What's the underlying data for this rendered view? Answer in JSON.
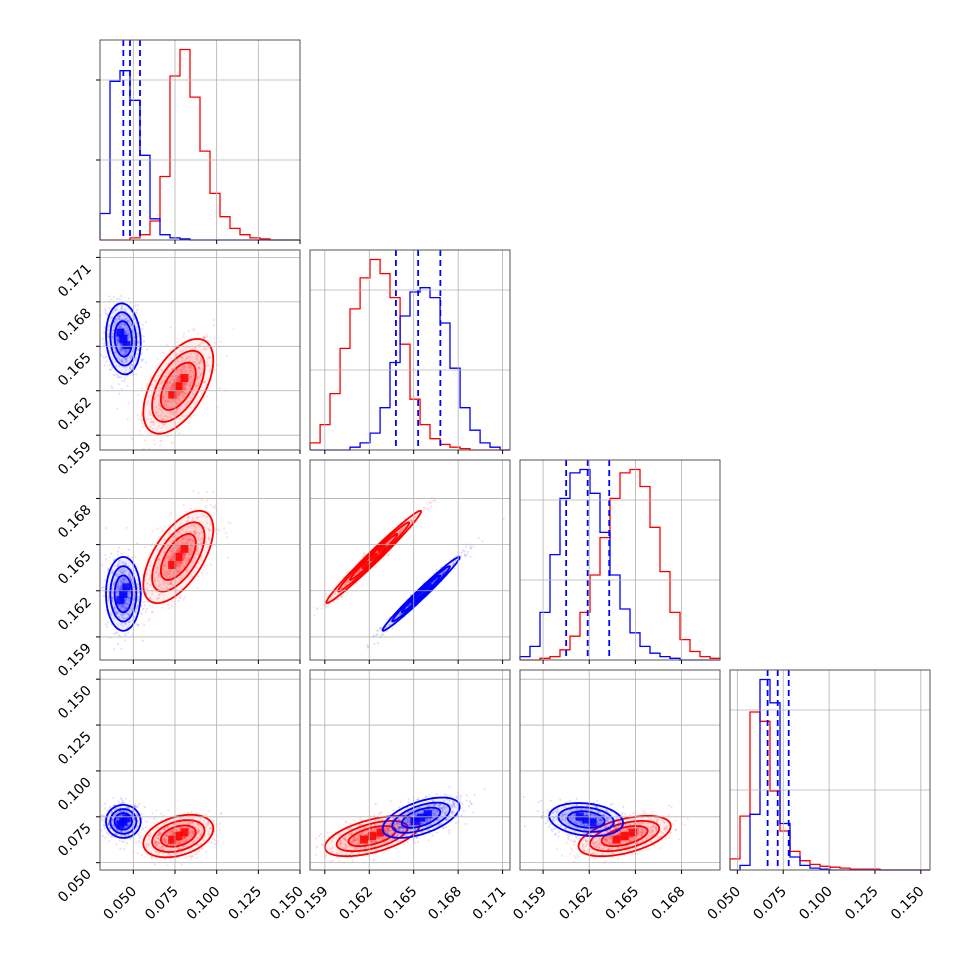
{
  "chart_data": {
    "type": "corner",
    "grid": true,
    "series": [
      {
        "name": "",
        "color": "#ff0000"
      },
      {
        "name": "",
        "color": "#0000ff"
      }
    ],
    "parameters": [
      {
        "range": [
          0.03,
          0.15
        ]
      },
      {
        "range": [
          0.158,
          0.1715
        ]
      },
      {
        "range": [
          0.1575,
          0.1705
        ]
      },
      {
        "range": [
          0.046,
          0.155
        ]
      }
    ],
    "tick_labels": {
      "col0_x": [
        "0.050",
        "0.075",
        "0.100",
        "0.125",
        "0.150"
      ],
      "col1_x": [
        "0.159",
        "0.162",
        "0.165",
        "0.168",
        "0.171"
      ],
      "col2_x": [
        "0.159",
        "0.162",
        "0.165",
        "0.168"
      ],
      "col3_x": [
        "0.050",
        "0.075",
        "0.100",
        "0.125",
        "0.150"
      ],
      "row1_y": [
        "0.159",
        "0.162",
        "0.165",
        "0.168",
        "0.171"
      ],
      "row2_y": [
        "0.159",
        "0.162",
        "0.165",
        "0.168"
      ],
      "row3_y": [
        "0.050",
        "0.075",
        "0.100",
        "0.125",
        "0.150"
      ]
    },
    "quantiles_blue": [
      [
        0.044,
        0.048,
        0.054
      ],
      [
        0.1638,
        0.1653,
        0.1668
      ],
      [
        0.1605,
        0.1619,
        0.1633
      ],
      [
        0.0665,
        0.072,
        0.078
      ]
    ],
    "histograms": {
      "p0": {
        "edges": [
          0.03,
          0.036,
          0.042,
          0.048,
          0.054,
          0.06,
          0.066,
          0.072,
          0.078,
          0.084,
          0.09,
          0.096,
          0.102,
          0.108,
          0.114,
          0.12,
          0.126,
          0.132,
          0.138,
          0.144,
          0.15
        ],
        "red": [
          0,
          0,
          0,
          2,
          5,
          18,
          60,
          155,
          180,
          135,
          84,
          44,
          22,
          11,
          5,
          2,
          1,
          0,
          0,
          0
        ],
        "blue": [
          25,
          150,
          160,
          132,
          80,
          20,
          5,
          2,
          1,
          0,
          0,
          0,
          0,
          0,
          0,
          0,
          0,
          0,
          0,
          0
        ]
      },
      "p1": {
        "edges": [
          0.158,
          0.15868,
          0.15935,
          0.16003,
          0.1607,
          0.16138,
          0.16205,
          0.16273,
          0.1634,
          0.16408,
          0.16475,
          0.16543,
          0.1661,
          0.16678,
          0.16745,
          0.16813,
          0.1688,
          0.16948,
          0.17015,
          0.17083,
          0.1715
        ],
        "red": [
          5,
          18,
          40,
          72,
          100,
          122,
          135,
          125,
          108,
          75,
          36,
          18,
          8,
          4,
          2,
          1,
          0,
          0,
          0,
          0
        ],
        "blue": [
          0,
          0,
          0,
          0,
          2,
          5,
          12,
          30,
          62,
          95,
          112,
          115,
          108,
          90,
          58,
          30,
          14,
          5,
          2,
          0
        ]
      },
      "p2": {
        "edges": [
          0.1575,
          0.15815,
          0.1588,
          0.15945,
          0.1601,
          0.16075,
          0.1614,
          0.16205,
          0.1627,
          0.16335,
          0.164,
          0.16465,
          0.1653,
          0.16595,
          0.1666,
          0.16725,
          0.1679,
          0.16855,
          0.1692,
          0.16985,
          0.1705
        ],
        "red": [
          0,
          0,
          1,
          2,
          6,
          14,
          28,
          50,
          72,
          95,
          110,
          112,
          102,
          78,
          52,
          28,
          12,
          5,
          2,
          1
        ],
        "blue": [
          2,
          8,
          28,
          62,
          95,
          110,
          112,
          98,
          75,
          50,
          30,
          16,
          8,
          4,
          2,
          1,
          0,
          0,
          0,
          0
        ]
      },
      "p3": {
        "edges": [
          0.046,
          0.05145,
          0.0569,
          0.06235,
          0.0678,
          0.07325,
          0.0787,
          0.08415,
          0.0896,
          0.09505,
          0.1005,
          0.10595,
          0.1114,
          0.11685,
          0.1223,
          0.12775,
          0.1332,
          0.13865,
          0.1441,
          0.14955,
          0.155
        ],
        "red": [
          12,
          58,
          170,
          160,
          85,
          42,
          20,
          10,
          6,
          4,
          3,
          2,
          1,
          1,
          1,
          0,
          0,
          0,
          0,
          0
        ],
        "blue": [
          0,
          5,
          60,
          205,
          180,
          50,
          14,
          5,
          2,
          1,
          0,
          0,
          0,
          0,
          0,
          0,
          0,
          0,
          0,
          0
        ]
      }
    },
    "contours_2d": {
      "p0_p1": {
        "red": {
          "center": [
            0.077,
            0.1623
          ],
          "sd": [
            0.0105,
            0.0016
          ],
          "rho": 0.55
        },
        "blue": {
          "center": [
            0.044,
            0.1655
          ],
          "sd": [
            0.0052,
            0.0012
          ],
          "rho": -0.1
        }
      },
      "p0_p2": {
        "red": {
          "center": [
            0.077,
            0.1642
          ],
          "sd": [
            0.0105,
            0.0015
          ],
          "rho": 0.6
        },
        "blue": {
          "center": [
            0.044,
            0.1618
          ],
          "sd": [
            0.0052,
            0.0012
          ],
          "rho": 0.0
        }
      },
      "p1_p2": {
        "red": {
          "center": [
            0.1623,
            0.1642
          ],
          "sd": [
            0.0016,
            0.0015
          ],
          "rho": 0.985
        },
        "blue": {
          "center": [
            0.1655,
            0.1618
          ],
          "sd": [
            0.0013,
            0.0012
          ],
          "rho": 0.985
        }
      },
      "p0_p3": {
        "red": {
          "center": [
            0.077,
            0.0645
          ],
          "sd": [
            0.0105,
            0.0058
          ],
          "rho": 0.35
        },
        "blue": {
          "center": [
            0.044,
            0.0725
          ],
          "sd": [
            0.0052,
            0.0045
          ],
          "rho": 0.0
        }
      },
      "p1_p3": {
        "red": {
          "center": [
            0.1622,
            0.0645
          ],
          "sd": [
            0.0016,
            0.0055
          ],
          "rho": 0.55
        },
        "blue": {
          "center": [
            0.1655,
            0.0745
          ],
          "sd": [
            0.0013,
            0.0055
          ],
          "rho": 0.55
        }
      },
      "p2_p3": {
        "red": {
          "center": [
            0.1643,
            0.0645
          ],
          "sd": [
            0.0015,
            0.0055
          ],
          "rho": 0.5
        },
        "blue": {
          "center": [
            0.1618,
            0.0735
          ],
          "sd": [
            0.0012,
            0.0045
          ],
          "rho": -0.2
        }
      }
    },
    "contour_levels_sigma": [
      0.5,
      1.0,
      1.5,
      2.0
    ]
  }
}
